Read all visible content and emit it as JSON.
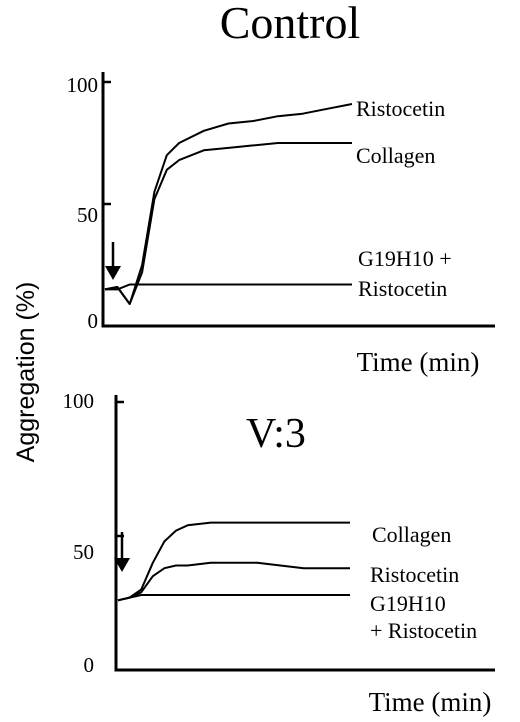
{
  "ylabel": "Aggregation (%)",
  "chart_data": [
    {
      "type": "line",
      "title": "Control",
      "xlabel": "Time (min)",
      "ylim": [
        0,
        100
      ],
      "yticks": [
        "0",
        "50",
        "100"
      ],
      "x": [
        0,
        0.5,
        1,
        1.5,
        2,
        2.5,
        3,
        4,
        5,
        6,
        7,
        8,
        9,
        10
      ],
      "series": [
        {
          "name": "Ristocetin",
          "values": [
            15,
            16,
            9,
            25,
            55,
            70,
            75,
            80,
            83,
            84,
            86,
            87,
            89,
            91
          ]
        },
        {
          "name": "Collagen",
          "values": [
            15,
            16,
            9,
            22,
            52,
            64,
            68,
            72,
            73,
            74,
            75,
            75,
            75,
            75
          ]
        },
        {
          "name": "G19H10 + Ristocetin",
          "values": [
            15,
            15,
            17,
            17,
            17,
            17,
            17,
            17,
            17,
            17,
            17,
            17,
            17,
            17
          ]
        }
      ],
      "annotations": [
        {
          "text": "Ristocetin"
        },
        {
          "text": "Collagen"
        },
        {
          "text": [
            "G19H10 +",
            "Ristocetin"
          ]
        }
      ]
    },
    {
      "type": "line",
      "title": "V:3",
      "xlabel": "Time (min)",
      "ylim": [
        0,
        100
      ],
      "yticks": [
        "0",
        "50",
        "100"
      ],
      "x": [
        0,
        0.5,
        1,
        1.5,
        2,
        2.5,
        3,
        4,
        5,
        6,
        7,
        8,
        9,
        10
      ],
      "series": [
        {
          "name": "Collagen",
          "values": [
            26,
            27,
            30,
            40,
            48,
            52,
            54,
            55,
            55,
            55,
            55,
            55,
            55,
            55
          ]
        },
        {
          "name": "Ristocetin",
          "values": [
            26,
            27,
            29,
            35,
            38,
            39,
            39,
            40,
            40,
            40,
            39,
            38,
            38,
            38
          ]
        },
        {
          "name": "G19H10 + Ristocetin",
          "values": [
            26,
            27,
            28,
            28,
            28,
            28,
            28,
            28,
            28,
            28,
            28,
            28,
            28,
            28
          ]
        }
      ],
      "annotations": [
        {
          "text": "Collagen"
        },
        {
          "text": "Ristocetin"
        },
        {
          "text": [
            "G19H10",
            "+ Ristocetin"
          ]
        }
      ]
    }
  ]
}
